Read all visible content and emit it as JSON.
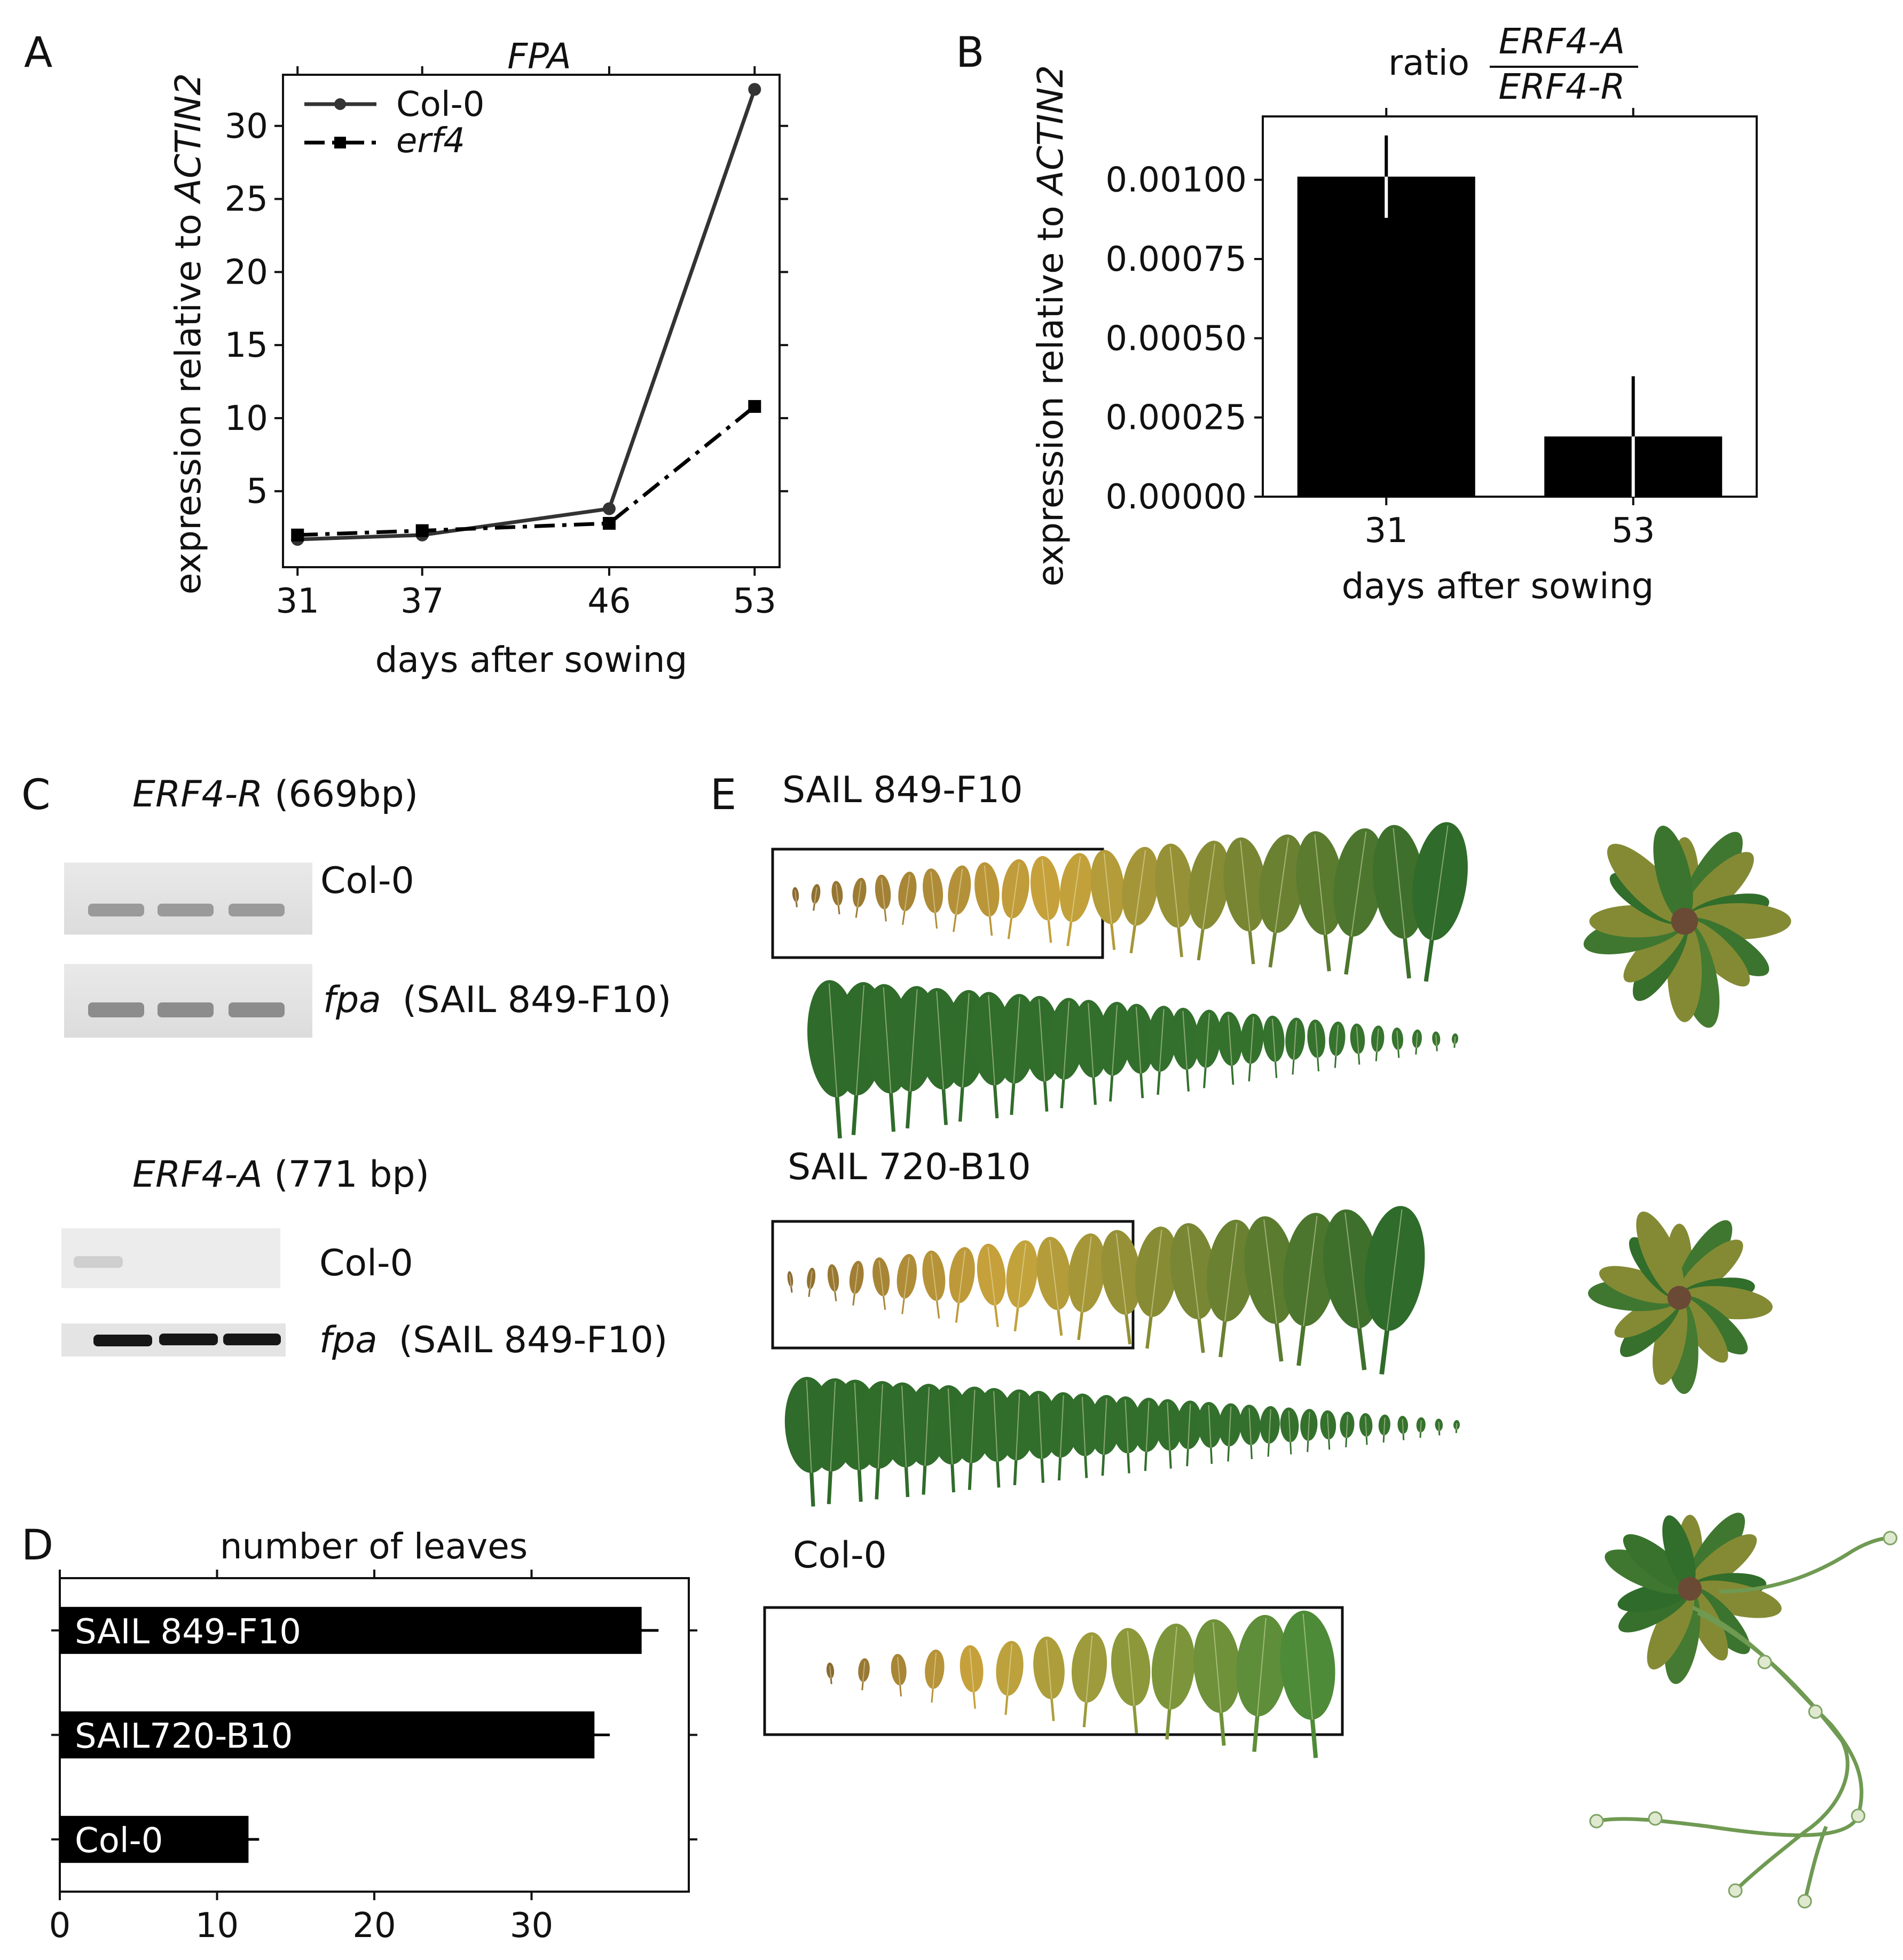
{
  "panel_letters": [
    "A",
    "B",
    "C",
    "D",
    "E"
  ],
  "chart_data": [
    {
      "panel": "A",
      "type": "line",
      "title": "FPA",
      "xlabel": "days after sowing",
      "ylabel_prefix": "expression relative to ",
      "ylabel_gene": "ACTIN2",
      "x": [
        31,
        37,
        46,
        53
      ],
      "xticks": [
        31,
        37,
        46,
        53
      ],
      "yticks": [
        5,
        10,
        15,
        20,
        25,
        30
      ],
      "xlim": [
        30.3,
        54.2
      ],
      "ylim": [
        -0.2,
        33.5
      ],
      "legend_position": "upper-left",
      "series": [
        {
          "name": "Col-0",
          "style": "solid",
          "marker": "circle",
          "values": [
            1.7,
            2.0,
            3.8,
            32.5
          ]
        },
        {
          "name": "erf4",
          "style": "dash-dot",
          "marker": "square",
          "values": [
            2.0,
            2.3,
            2.8,
            10.8
          ]
        }
      ]
    },
    {
      "panel": "B",
      "type": "bar",
      "title_prefix": "ratio",
      "title_numerator": "ERF4-A",
      "title_denominator": "ERF4-R",
      "xlabel": "days after sowing",
      "ylabel_prefix": "expression relative to ",
      "ylabel_gene": "ACTIN2",
      "categories": [
        "31",
        "53"
      ],
      "values": [
        0.00101,
        0.00019
      ],
      "errors": [
        0.00013,
        0.00019
      ],
      "yticks": [
        "0.00000",
        "0.00025",
        "0.00050",
        "0.00075",
        "0.00100"
      ],
      "ylim": [
        0,
        0.0012
      ]
    },
    {
      "panel": "D",
      "type": "bar",
      "orientation": "horizontal",
      "xlabel": "number of leaves",
      "categories": [
        "SAIL 849-F10",
        "SAIL720-B10",
        "Col-0"
      ],
      "values": [
        37,
        34,
        12
      ],
      "errors": [
        0.6,
        0.5,
        0.2
      ],
      "xticks": [
        0,
        10,
        20,
        30
      ],
      "xlim": [
        0,
        40
      ]
    }
  ],
  "panel_c": {
    "erf4r_gene": "ERF4-R",
    "erf4r_size": " (669bp)",
    "erf4a_gene": "ERF4-A",
    "erf4a_size": " (771 bp)",
    "col0_label": "Col-0",
    "fpa_label": "fpa",
    "fpa_allele": "(SAIL 849-F10)"
  },
  "panel_e": {
    "sail849_label": "SAIL 849-F10",
    "sail720_label": "SAIL 720-B10",
    "col0_label": "Col-0"
  },
  "colors": {
    "ink": "#111111",
    "gel_bg": "#e6e6e6",
    "leaf_green": "#2f6b2a",
    "leaf_yellow": "#c9a43c",
    "leaf_brown": "#8a6a30"
  }
}
